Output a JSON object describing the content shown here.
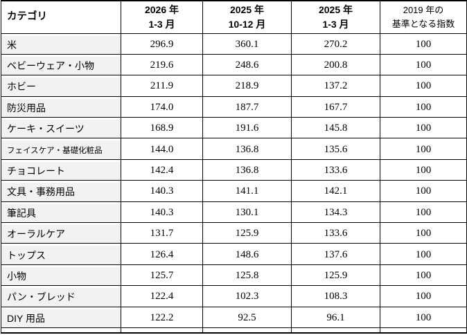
{
  "table": {
    "headers": [
      {
        "line1": "カテゴリ",
        "line2": ""
      },
      {
        "line1": "2026 年",
        "line2": "1-3 月"
      },
      {
        "line1": "2025 年",
        "line2": "10-12 月"
      },
      {
        "line1": "2025 年",
        "line2": "1-3 月"
      },
      {
        "line1": "2019 年の",
        "line2": "基準となる指数"
      }
    ],
    "rows": [
      {
        "category": "米",
        "values": [
          "296.9",
          "360.1",
          "270.2",
          "100"
        ]
      },
      {
        "category": "ベビーウェア・小物",
        "values": [
          "219.6",
          "248.6",
          "200.8",
          "100"
        ]
      },
      {
        "category": "ホビー",
        "values": [
          "211.9",
          "218.9",
          "137.2",
          "100"
        ]
      },
      {
        "category": "防災用品",
        "values": [
          "174.0",
          "187.7",
          "167.7",
          "100"
        ]
      },
      {
        "category": "ケーキ・スイーツ",
        "values": [
          "168.9",
          "191.6",
          "145.8",
          "100"
        ]
      },
      {
        "category": "フェイスケア・基礎化粧品",
        "values": [
          "144.0",
          "136.8",
          "135.6",
          "100"
        ]
      },
      {
        "category": "チョコレート",
        "values": [
          "142.4",
          "136.8",
          "133.6",
          "100"
        ]
      },
      {
        "category": "文具・事務用品",
        "values": [
          "140.3",
          "141.1",
          "142.1",
          "100"
        ]
      },
      {
        "category": "筆記具",
        "values": [
          "140.3",
          "130.1",
          "134.3",
          "100"
        ]
      },
      {
        "category": "オーラルケア",
        "values": [
          "131.7",
          "125.9",
          "133.6",
          "100"
        ]
      },
      {
        "category": "トップス",
        "values": [
          "126.4",
          "148.6",
          "137.6",
          "100"
        ]
      },
      {
        "category": "小物",
        "values": [
          "125.7",
          "125.8",
          "125.9",
          "100"
        ]
      },
      {
        "category": "パン・ブレッド",
        "values": [
          "122.4",
          "102.3",
          "108.3",
          "100"
        ]
      },
      {
        "category": "DIY 用品",
        "values": [
          "122.2",
          "92.5",
          "96.1",
          "100"
        ]
      }
    ]
  },
  "chart_data": {
    "type": "table",
    "title": "",
    "categories": [
      "米",
      "ベビーウェア・小物",
      "ホビー",
      "防災用品",
      "ケーキ・スイーツ",
      "フェイスケア・基礎化粧品",
      "チョコレート",
      "文具・事務用品",
      "筆記具",
      "オーラルケア",
      "トップス",
      "小物",
      "パン・ブレッド",
      "DIY 用品"
    ],
    "series": [
      {
        "name": "2026 年 1-3 月",
        "values": [
          296.9,
          219.6,
          211.9,
          174.0,
          168.9,
          144.0,
          142.4,
          140.3,
          140.3,
          131.7,
          126.4,
          125.7,
          122.4,
          122.2
        ]
      },
      {
        "name": "2025 年 10-12 月",
        "values": [
          360.1,
          248.6,
          218.9,
          187.7,
          191.6,
          136.8,
          136.8,
          141.1,
          130.1,
          125.9,
          148.6,
          125.8,
          102.3,
          92.5
        ]
      },
      {
        "name": "2025 年 1-3 月",
        "values": [
          270.2,
          200.8,
          137.2,
          167.7,
          145.8,
          135.6,
          133.6,
          142.1,
          134.3,
          133.6,
          137.6,
          125.9,
          108.3,
          96.1
        ]
      },
      {
        "name": "2019 年の基準となる指数",
        "values": [
          100,
          100,
          100,
          100,
          100,
          100,
          100,
          100,
          100,
          100,
          100,
          100,
          100,
          100
        ]
      }
    ],
    "layout_hints": {
      "first_column_header": "カテゴリ",
      "baseline_note": "2019 年 = 100"
    }
  },
  "colors": {
    "border": "#000000",
    "category_bg": "#f2f2f2",
    "text": "#000000",
    "background": "#ffffff"
  }
}
